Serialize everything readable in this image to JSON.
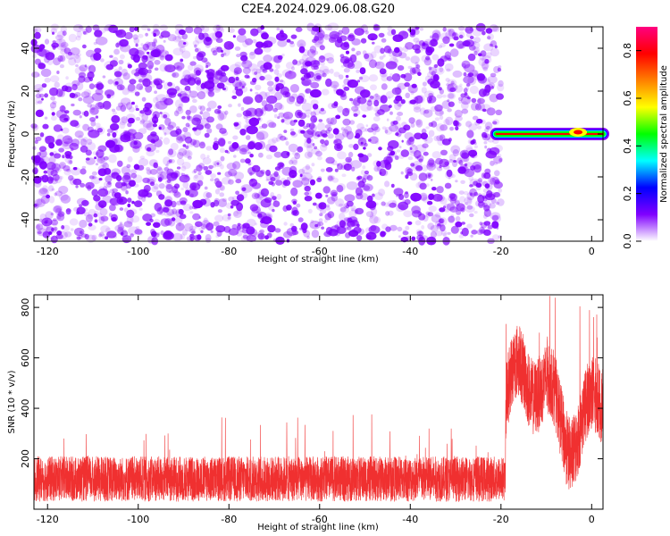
{
  "title": "C2E4.2024.029.06.08.G20",
  "chart_data": [
    {
      "type": "heatmap",
      "name": "spectrogram",
      "xlabel": "Height of straight line (km)",
      "ylabel": "Frequency (Hz)",
      "xlim": [
        -123,
        2.5
      ],
      "ylim": [
        -50,
        50
      ],
      "xticks": [
        -120,
        -100,
        -80,
        -60,
        -40,
        -20,
        0
      ],
      "yticks": [
        -40,
        -20,
        0,
        20,
        40
      ],
      "noise_region_x": [
        -123,
        -20
      ],
      "signal_track": {
        "x_start": -21,
        "x_end": 2.5,
        "frequency_hz": 0,
        "peak_amplitude": 1.0
      },
      "colorbar": {
        "label": "Normalized spectral amplitude",
        "range": [
          0,
          0.9
        ],
        "ticks": [
          0.0,
          0.2,
          0.4,
          0.6,
          0.8
        ],
        "colormap": [
          "#ffffff",
          "#8000ff",
          "#0000ff",
          "#00ffff",
          "#00ff00",
          "#ffff00",
          "#ff8000",
          "#ff0000",
          "#ff0080"
        ]
      },
      "noise_color": "#8000ff"
    },
    {
      "type": "line",
      "name": "snr",
      "xlabel": "Height of straight line (km)",
      "ylabel": "SNR (10 * v/v)",
      "xlim": [
        -123,
        2.5
      ],
      "ylim": [
        0,
        850
      ],
      "xticks": [
        -120,
        -100,
        -80,
        -60,
        -40,
        -20,
        0
      ],
      "yticks": [
        200,
        400,
        600,
        800
      ],
      "series": [
        {
          "color": "#f03030",
          "segments": [
            {
              "x_range": [
                -123,
                -19
              ],
              "baseline": 120,
              "spread": 90,
              "spikes_max": 380
            },
            {
              "x_range": [
                -19,
                2.5
              ],
              "baseline": 420,
              "spread": 150,
              "spikes_max": 850
            }
          ]
        }
      ]
    }
  ]
}
